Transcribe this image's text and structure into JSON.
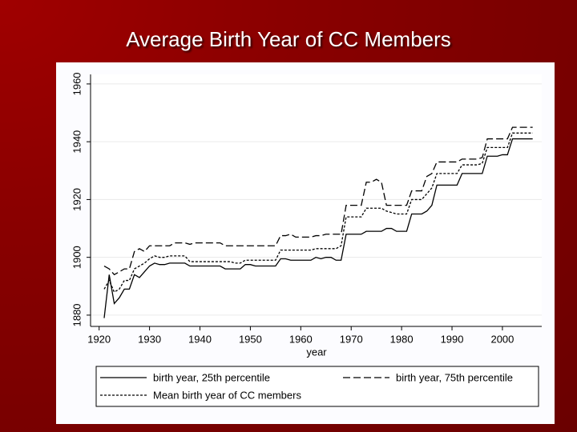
{
  "chart_data": {
    "type": "line",
    "title": "Average Birth Year of CC Members",
    "xlabel": "year",
    "x": [
      1921,
      1922,
      1923,
      1924,
      1925,
      1926,
      1927,
      1928,
      1929,
      1930,
      1931,
      1932,
      1933,
      1934,
      1935,
      1936,
      1937,
      1938,
      1939,
      1940,
      1941,
      1942,
      1943,
      1944,
      1945,
      1946,
      1947,
      1948,
      1949,
      1950,
      1951,
      1952,
      1953,
      1954,
      1955,
      1956,
      1957,
      1958,
      1959,
      1960,
      1961,
      1962,
      1963,
      1964,
      1965,
      1966,
      1967,
      1968,
      1969,
      1970,
      1971,
      1972,
      1973,
      1974,
      1975,
      1976,
      1977,
      1978,
      1979,
      1980,
      1981,
      1982,
      1983,
      1984,
      1985,
      1986,
      1987,
      1988,
      1989,
      1990,
      1991,
      1992,
      1993,
      1994,
      1995,
      1996,
      1997,
      1998,
      1999,
      2000,
      2001,
      2002,
      2003,
      2004,
      2005,
      2006
    ],
    "series": [
      {
        "name": "birth year, 25th percentile",
        "color": "#000000",
        "style": "solid",
        "values": [
          1879,
          1894,
          1884,
          1886,
          1889,
          1889,
          1894,
          1893,
          1895,
          1897,
          1898,
          1897.5,
          1897.5,
          1898,
          1898,
          1898,
          1898,
          1897,
          1897,
          1897,
          1897,
          1897,
          1897,
          1897,
          1896,
          1896,
          1896,
          1896,
          1897.5,
          1897.5,
          1897,
          1897,
          1897,
          1897,
          1897,
          1899.5,
          1899.5,
          1899,
          1899,
          1899,
          1899,
          1899,
          1900,
          1899.5,
          1900,
          1900,
          1899,
          1899,
          1908,
          1908,
          1908,
          1908,
          1909,
          1909,
          1909,
          1909,
          1910,
          1910,
          1909,
          1909,
          1909,
          1915,
          1915,
          1915,
          1916,
          1918,
          1925,
          1925,
          1925,
          1925,
          1925,
          1929,
          1929,
          1929,
          1929,
          1929,
          1935,
          1935,
          1935,
          1935.5,
          1935.5,
          1941,
          1941,
          1941,
          1941,
          1941
        ]
      },
      {
        "name": "birth year, 75th percentile",
        "color": "#000000",
        "style": "dashed",
        "values": [
          1897,
          1896,
          1894,
          1895,
          1896,
          1896,
          1902,
          1903,
          1902,
          1904,
          1904,
          1904,
          1904,
          1904,
          1905,
          1905,
          1905,
          1904.5,
          1905,
          1905,
          1905,
          1905,
          1905,
          1905,
          1904,
          1904,
          1904,
          1904,
          1904,
          1904,
          1904,
          1904,
          1904,
          1904,
          1904,
          1907.5,
          1907.5,
          1908,
          1907,
          1907,
          1907,
          1907,
          1907.5,
          1907.5,
          1908,
          1908,
          1908,
          1908,
          1918,
          1918,
          1918,
          1918,
          1926,
          1926,
          1927,
          1926,
          1918,
          1918,
          1918,
          1918,
          1918,
          1923,
          1923,
          1923,
          1928,
          1929,
          1933,
          1933,
          1933,
          1933,
          1933,
          1934,
          1934,
          1934,
          1934,
          1934.5,
          1941,
          1941,
          1941,
          1941,
          1941,
          1945,
          1945,
          1945,
          1945,
          1945
        ]
      },
      {
        "name": "Mean birth year of CC members",
        "color": "#000000",
        "style": "dotted",
        "values": [
          1889,
          1892,
          1888,
          1889,
          1892,
          1892,
          1896,
          1897,
          1898,
          1899.5,
          1900.5,
          1900,
          1900,
          1900.5,
          1900.5,
          1900.5,
          1900.5,
          1898.5,
          1898.5,
          1898.5,
          1898.5,
          1898.5,
          1898.5,
          1898.5,
          1898.5,
          1898.5,
          1898,
          1898,
          1899,
          1899,
          1899,
          1899,
          1899,
          1899,
          1899,
          1902.5,
          1902.5,
          1902.5,
          1902.5,
          1902.5,
          1902.5,
          1902.5,
          1903,
          1903,
          1903,
          1903,
          1903,
          1904,
          1914,
          1914,
          1914,
          1914,
          1917,
          1917,
          1917,
          1917,
          1916,
          1915.5,
          1915,
          1915,
          1915,
          1920,
          1920,
          1920,
          1922,
          1924,
          1929,
          1929,
          1929,
          1929,
          1929,
          1932,
          1932,
          1932,
          1932,
          1932.5,
          1938,
          1938,
          1938,
          1938,
          1938,
          1943,
          1943,
          1943,
          1943,
          1943
        ]
      }
    ],
    "xlim": [
      1918.3,
      2007.8
    ],
    "xticks": [
      1920,
      1930,
      1940,
      1950,
      1960,
      1970,
      1980,
      1990,
      2000
    ],
    "ylim": [
      1876.1,
      1963.3
    ],
    "yticks": [
      1880,
      1900,
      1920,
      1940,
      1960
    ],
    "grid": true
  }
}
